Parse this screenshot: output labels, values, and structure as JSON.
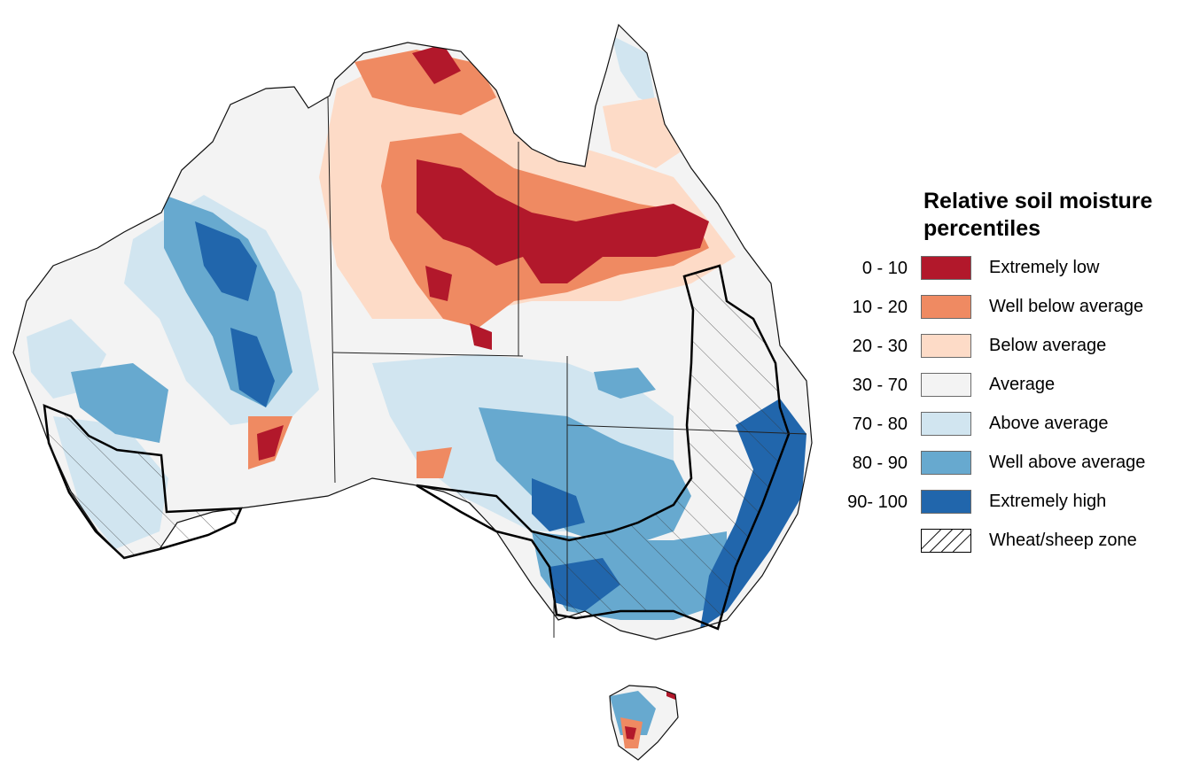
{
  "legend": {
    "title_line1": "Relative soil moisture",
    "title_line2": "percentiles",
    "classes": [
      {
        "range": "0 - 10",
        "label": "Extremely low",
        "color": "#b2182b"
      },
      {
        "range": "10 - 20",
        "label": "Well below average",
        "color": "#ef8a62"
      },
      {
        "range": "20 - 30",
        "label": "Below average",
        "color": "#fddbc7"
      },
      {
        "range": "30 - 70",
        "label": "Average",
        "color": "#f3f3f3"
      },
      {
        "range": "70 - 80",
        "label": "Above average",
        "color": "#d1e5f0"
      },
      {
        "range": "80 - 90",
        "label": "Well above average",
        "color": "#67a9cf"
      },
      {
        "range": "90- 100",
        "label": "Extremely high",
        "color": "#2166ac"
      }
    ],
    "wheat_zone_label": "Wheat/sheep zone"
  }
}
